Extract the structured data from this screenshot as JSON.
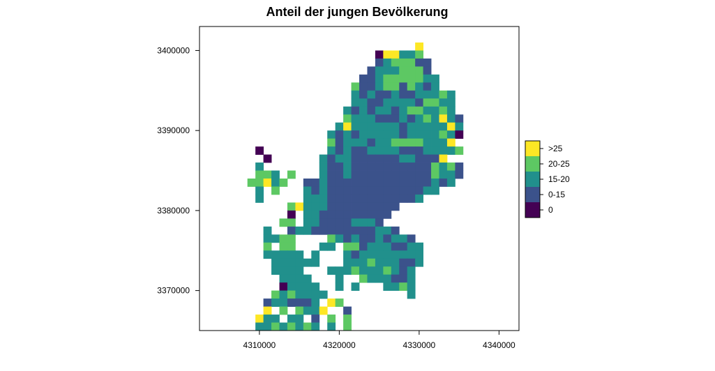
{
  "chart_data": {
    "type": "heatmap",
    "title": "Anteil der jungen Bevölkerung",
    "xlabel": "",
    "ylabel": "",
    "xlim": [
      4302500,
      4342500
    ],
    "ylim": [
      3365000,
      3403000
    ],
    "cell_size": 1000,
    "x_ticks": [
      4310000,
      4320000,
      4330000,
      4340000
    ],
    "y_ticks": [
      3370000,
      3380000,
      3390000,
      3400000
    ],
    "x_tick_labels": [
      "4310000",
      "4320000",
      "4330000",
      "4340000"
    ],
    "y_tick_labels": [
      "3370000",
      "3380000",
      "3390000",
      "3400000"
    ],
    "grid": false,
    "legend_position": "right",
    "legend": [
      {
        "key": "5",
        "label": ">25",
        "color": "#FDE725"
      },
      {
        "key": "4",
        "label": "20-25",
        "color": "#5DC863"
      },
      {
        "key": "3",
        "label": "15-20",
        "color": "#21908C"
      },
      {
        "key": "2",
        "label": "0-15",
        "color": "#3B528B"
      },
      {
        "key": "1",
        "label": "0",
        "color": "#440154"
      }
    ],
    "grid_origin": {
      "x_min": 4302500,
      "y_max": 3403000
    },
    "cells": [
      "..............................................",
      "..............................................",
      "...........................5..................",
      "......................155334..................",
      "......................2344422.................",
      ".....................23334442.................",
      "....................2234444433................",
      "...................42234424323................",
      "...................3232232233343..............",
      "...................3322333324433..............",
      "..................32323323443343..............",
      "..................433322232343532.............",
      ".................3533333323333353.............",
      "................32323333323333431.............",
      "................4233323344443335..............",
      ".......1........32322333322233334.............",
      "........1......3233222222332225...............",
      ".......3.......322322222222224342.............",
      ".......443.4...322322222222224332.............",
      "......44534..2232222222222222323..............",
      ".......3.4...32322222222222233................",
      ".......3.....333222222222223..................",
      "...........45333222222222.....................",
      "...........1.33222222222......................",
      "..........44.3322223332.......................",
      "........3..23322222222332.....................",
      "........3344....43232232332...................",
      "........4.44...33.4423332233..................",
      "........33333.3...3233333333..................",
      ".........333333...3334333223..................",
      ".........3333...33343334323...................",
      "..........3333...3..4333223...................",
      "..........13333..3.3...3343...................",
      ".........4343333..........3...................",
      "........2332223.54............................",
      "........5.4.4335..2...........................",
      ".......533.33.2.4.4...........................",
      ".......33434343.3.4...........................",
      "........33334.3.3.5...........................",
      ".........223....4.............................",
      ".........3.....5..............................",
      "..............................................",
      "..............................................",
      ".............................................."
    ]
  }
}
